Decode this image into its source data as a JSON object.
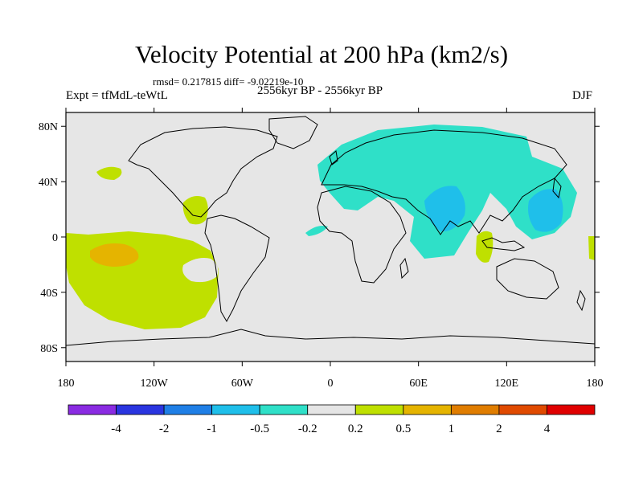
{
  "title": "Velocity Potential at 200 hPa (km2/s)",
  "stats_line": "rmsd= 0.217815 diff= -9.02219e-10",
  "experiment": "Expt = tfMdL-teWtL",
  "period": "2556kyr BP - 2556kyr BP",
  "season": "DJF",
  "lat_ticks": [
    {
      "label": "80N",
      "lat": 80
    },
    {
      "label": "40N",
      "lat": 40
    },
    {
      "label": "0",
      "lat": 0
    },
    {
      "label": "40S",
      "lat": -40
    },
    {
      "label": "80S",
      "lat": -80
    }
  ],
  "lon_ticks": [
    {
      "label": "180",
      "lon": -180
    },
    {
      "label": "120W",
      "lon": -120
    },
    {
      "label": "60W",
      "lon": -60
    },
    {
      "label": "0",
      "lon": 0
    },
    {
      "label": "60E",
      "lon": 60
    },
    {
      "label": "120E",
      "lon": 120
    },
    {
      "label": "180",
      "lon": 180
    }
  ],
  "colorbar": {
    "colors": [
      "#8a2be2",
      "#2a35e0",
      "#1f7fe6",
      "#1fbfea",
      "#2fe0c8",
      "#e5e5e5",
      "#bfe000",
      "#e5b400",
      "#e07d00",
      "#e04a00",
      "#e00000"
    ],
    "labels": [
      "-4",
      "-2",
      "-1",
      "-0.5",
      "-0.2",
      "0.2",
      "0.5",
      "1",
      "2",
      "4"
    ]
  },
  "colors": {
    "background": "#e6e6e6",
    "neg_light": "#2fe0c8",
    "neg_medium": "#1fbfea",
    "pos_light": "#bfe000",
    "pos_medium": "#e5b400"
  }
}
